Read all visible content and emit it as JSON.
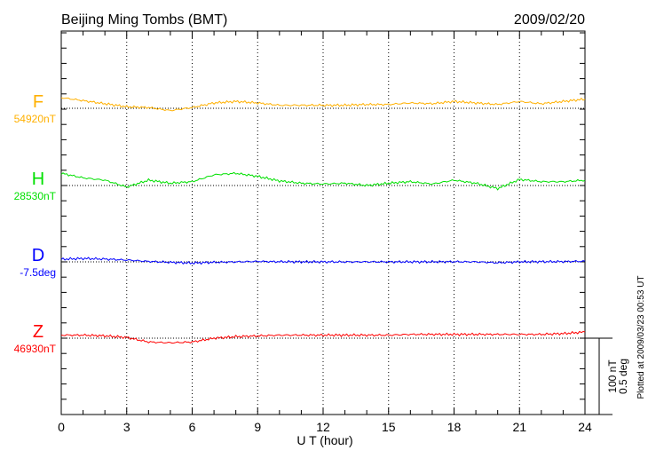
{
  "chart_data": {
    "type": "line",
    "title": "Beijing Ming Tombs (BMT)",
    "date": "2009/02/20",
    "xlabel": "U T (hour)",
    "xlim": [
      0,
      24
    ],
    "x_ticks": [
      "0",
      "3",
      "6",
      "9",
      "12",
      "15",
      "18",
      "21",
      "24"
    ],
    "grid": "dotted vertical every 3 h, dotted baseline per component",
    "scale_label_nT": "100 nT",
    "scale_label_deg": "0.5 deg",
    "footer": "Plotted at 2009/03/23 00:53 UT",
    "x": [
      0,
      1,
      2,
      3,
      4,
      5,
      6,
      7,
      8,
      9,
      10,
      11,
      12,
      13,
      14,
      15,
      16,
      17,
      18,
      19,
      20,
      21,
      22,
      23,
      24
    ],
    "series": [
      {
        "name": "F",
        "base_label": "54920nT",
        "base": 54920,
        "unit": "nT",
        "color": "#ffb000",
        "values": [
          54934,
          54930,
          54926,
          54922,
          54921,
          54917,
          54921,
          54927,
          54929,
          54927,
          54924,
          54924,
          54924,
          54924,
          54925,
          54925,
          54927,
          54926,
          54929,
          54927,
          54925,
          54929,
          54926,
          54929,
          54932
        ]
      },
      {
        "name": "H",
        "base_label": "28530nT",
        "base": 28530,
        "unit": "nT",
        "color": "#00e000",
        "values": [
          28546,
          28540,
          28537,
          28528,
          28537,
          28533,
          28535,
          28544,
          28546,
          28542,
          28536,
          28533,
          28532,
          28533,
          28530,
          28533,
          28535,
          28532,
          28537,
          28533,
          28526,
          28538,
          28535,
          28535,
          28537
        ]
      },
      {
        "name": "D",
        "base_label": "-7.5deg",
        "base": -7.5,
        "unit": "deg",
        "color": "#0000ff",
        "values": [
          -7.483,
          -7.478,
          -7.482,
          -7.488,
          -7.497,
          -7.503,
          -7.508,
          -7.503,
          -7.5,
          -7.497,
          -7.499,
          -7.5,
          -7.5,
          -7.5,
          -7.5,
          -7.5,
          -7.5,
          -7.5,
          -7.499,
          -7.5,
          -7.506,
          -7.5,
          -7.499,
          -7.498,
          -7.496
        ]
      },
      {
        "name": "Z",
        "base_label": "46930nT",
        "base": 46930,
        "unit": "nT",
        "color": "#ff0000",
        "values": [
          46934,
          46934,
          46933,
          46931,
          46925,
          46924,
          46925,
          46930,
          46932,
          46933,
          46934,
          46934,
          46934,
          46934,
          46934,
          46934,
          46935,
          46935,
          46935,
          46935,
          46935,
          46935,
          46935,
          46936,
          46938
        ]
      }
    ]
  }
}
